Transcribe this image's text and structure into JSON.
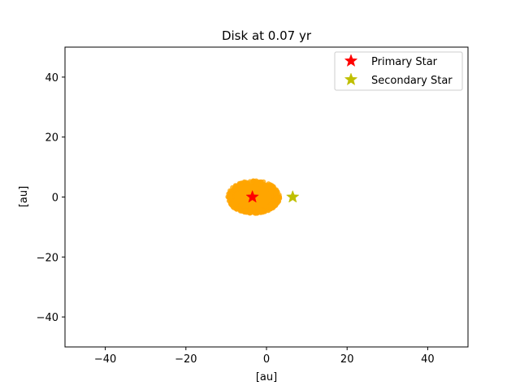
{
  "chart_data": {
    "type": "scatter",
    "title": "Disk at 0.07 yr",
    "xlabel": "[au]",
    "ylabel": "[au]",
    "xlim": [
      -50,
      50
    ],
    "ylim": [
      -50,
      50
    ],
    "xticks": [
      -40,
      -20,
      0,
      20,
      40
    ],
    "yticks": [
      -40,
      -20,
      0,
      20,
      40
    ],
    "xtick_labels": [
      "−40",
      "−20",
      "0",
      "20",
      "40"
    ],
    "ytick_labels": [
      "−40",
      "−20",
      "0",
      "20",
      "40"
    ],
    "grid": false,
    "legend_position": "top-right",
    "series": [
      {
        "name": "Primary Star",
        "marker": "star",
        "color": "#ff0000",
        "x": [
          -3.5
        ],
        "y": [
          0
        ]
      },
      {
        "name": "Secondary Star",
        "marker": "star",
        "color": "#bfbf00",
        "x": [
          6.5
        ],
        "y": [
          0
        ]
      }
    ],
    "disk": {
      "color": "#ffa500",
      "center": [
        -3.2,
        0
      ],
      "radius_x": 6.5,
      "radius_y": 5.5
    }
  }
}
